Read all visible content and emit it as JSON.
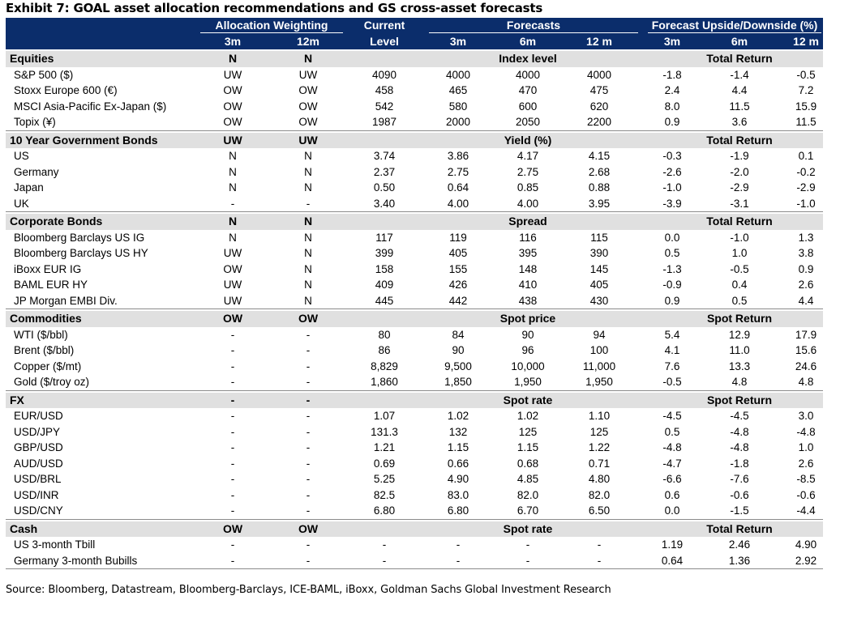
{
  "title": "Exhibit 7: GOAL asset allocation recommendations and GS cross-asset forecasts",
  "source": "Source: Bloomberg, Datastream, Bloomberg-Barclays, ICE-BAML, iBoxx, Goldman Sachs Global Investment Research",
  "header": {
    "allocation_weighting": "Allocation Weighting",
    "current": "Current",
    "forecasts": "Forecasts",
    "upside_downside": "Forecast Upside/Downside (%)",
    "sub": [
      "3m",
      "12m",
      "Level",
      "3m",
      "6m",
      "12 m",
      "3m",
      "6m",
      "12 m"
    ]
  },
  "sections": [
    {
      "name": "Equities",
      "w3": "N",
      "w12": "N",
      "forecast_label": "Index level",
      "return_label": "Total Return",
      "rows": [
        {
          "name": "S&P 500 ($)",
          "v": [
            "UW",
            "UW",
            "4090",
            "4000",
            "4000",
            "4000",
            "-1.8",
            "-1.4",
            "-0.5"
          ]
        },
        {
          "name": "Stoxx Europe 600 (€)",
          "v": [
            "OW",
            "OW",
            "458",
            "465",
            "470",
            "475",
            "2.4",
            "4.4",
            "7.2"
          ]
        },
        {
          "name": "MSCI Asia-Pacific Ex-Japan ($)",
          "v": [
            "OW",
            "OW",
            "542",
            "580",
            "600",
            "620",
            "8.0",
            "11.5",
            "15.9"
          ]
        },
        {
          "name": "Topix (¥)",
          "v": [
            "OW",
            "OW",
            "1987",
            "2000",
            "2050",
            "2200",
            "0.9",
            "3.6",
            "11.5"
          ]
        }
      ]
    },
    {
      "name": "10 Year Government Bonds",
      "w3": "UW",
      "w12": "UW",
      "forecast_label": "Yield (%)",
      "return_label": "Total Return",
      "rows": [
        {
          "name": "US",
          "v": [
            "N",
            "N",
            "3.74",
            "3.86",
            "4.17",
            "4.15",
            "-0.3",
            "-1.9",
            "0.1"
          ]
        },
        {
          "name": "Germany",
          "v": [
            "N",
            "N",
            "2.37",
            "2.75",
            "2.75",
            "2.68",
            "-2.6",
            "-2.0",
            "-0.2"
          ]
        },
        {
          "name": "Japan",
          "v": [
            "N",
            "N",
            "0.50",
            "0.64",
            "0.85",
            "0.88",
            "-1.0",
            "-2.9",
            "-2.9"
          ]
        },
        {
          "name": "UK",
          "v": [
            "-",
            "-",
            "3.40",
            "4.00",
            "4.00",
            "3.95",
            "-3.9",
            "-3.1",
            "-1.0"
          ]
        }
      ]
    },
    {
      "name": "Corporate Bonds",
      "w3": "N",
      "w12": "N",
      "forecast_label": "Spread",
      "return_label": "Total Return",
      "rows": [
        {
          "name": "Bloomberg Barclays US IG",
          "v": [
            "N",
            "N",
            "117",
            "119",
            "116",
            "115",
            "0.0",
            "-1.0",
            "1.3"
          ]
        },
        {
          "name": "Bloomberg Barclays US HY",
          "v": [
            "UW",
            "N",
            "399",
            "405",
            "395",
            "390",
            "0.5",
            "1.0",
            "3.8"
          ]
        },
        {
          "name": "iBoxx EUR IG",
          "v": [
            "OW",
            "N",
            "158",
            "155",
            "148",
            "145",
            "-1.3",
            "-0.5",
            "0.9"
          ]
        },
        {
          "name": "BAML EUR HY",
          "v": [
            "UW",
            "N",
            "409",
            "426",
            "410",
            "405",
            "-0.9",
            "0.4",
            "2.6"
          ]
        },
        {
          "name": "JP Morgan EMBI Div.",
          "v": [
            "UW",
            "N",
            "445",
            "442",
            "438",
            "430",
            "0.9",
            "0.5",
            "4.4"
          ]
        }
      ]
    },
    {
      "name": "Commodities",
      "w3": "OW",
      "w12": "OW",
      "forecast_label": "Spot price",
      "return_label": "Spot Return",
      "rows": [
        {
          "name": "WTI  ($/bbl)",
          "v": [
            "-",
            "-",
            "80",
            "84",
            "90",
            "94",
            "5.4",
            "12.9",
            "17.9"
          ]
        },
        {
          "name": "Brent ($/bbl)",
          "v": [
            "-",
            "-",
            "86",
            "90",
            "96",
            "100",
            "4.1",
            "11.0",
            "15.6"
          ]
        },
        {
          "name": "Copper ($/mt)",
          "v": [
            "-",
            "-",
            "8,829",
            "9,500",
            "10,000",
            "11,000",
            "7.6",
            "13.3",
            "24.6"
          ]
        },
        {
          "name": "Gold ($/troy oz)",
          "v": [
            "-",
            "-",
            "1,860",
            "1,850",
            "1,950",
            "1,950",
            "-0.5",
            "4.8",
            "4.8"
          ]
        }
      ]
    },
    {
      "name": "FX",
      "w3": "-",
      "w12": "-",
      "forecast_label": "Spot rate",
      "return_label": "Spot Return",
      "rows": [
        {
          "name": "EUR/USD",
          "v": [
            "-",
            "-",
            "1.07",
            "1.02",
            "1.02",
            "1.10",
            "-4.5",
            "-4.5",
            "3.0"
          ]
        },
        {
          "name": "USD/JPY",
          "v": [
            "-",
            "-",
            "131.3",
            "132",
            "125",
            "125",
            "0.5",
            "-4.8",
            "-4.8"
          ]
        },
        {
          "name": "GBP/USD",
          "v": [
            "-",
            "-",
            "1.21",
            "1.15",
            "1.15",
            "1.22",
            "-4.8",
            "-4.8",
            "1.0"
          ]
        },
        {
          "name": "AUD/USD",
          "v": [
            "-",
            "-",
            "0.69",
            "0.66",
            "0.68",
            "0.71",
            "-4.7",
            "-1.8",
            "2.6"
          ]
        },
        {
          "name": "USD/BRL",
          "v": [
            "-",
            "-",
            "5.25",
            "4.90",
            "4.85",
            "4.80",
            "-6.6",
            "-7.6",
            "-8.5"
          ]
        },
        {
          "name": "USD/INR",
          "v": [
            "-",
            "-",
            "82.5",
            "83.0",
            "82.0",
            "82.0",
            "0.6",
            "-0.6",
            "-0.6"
          ]
        },
        {
          "name": "USD/CNY",
          "v": [
            "-",
            "-",
            "6.80",
            "6.80",
            "6.70",
            "6.50",
            "0.0",
            "-1.5",
            "-4.4"
          ]
        }
      ]
    },
    {
      "name": "Cash",
      "w3": "OW",
      "w12": "OW",
      "forecast_label": "Spot rate",
      "return_label": "Total Return",
      "rows": [
        {
          "name": "US 3-month Tbill",
          "v": [
            "-",
            "-",
            "-",
            "-",
            "-",
            "-",
            "1.19",
            "2.46",
            "4.90"
          ]
        },
        {
          "name": "Germany 3-month Bubills",
          "v": [
            "-",
            "-",
            "-",
            "-",
            "-",
            "-",
            "0.64",
            "1.36",
            "2.92"
          ]
        }
      ]
    }
  ]
}
